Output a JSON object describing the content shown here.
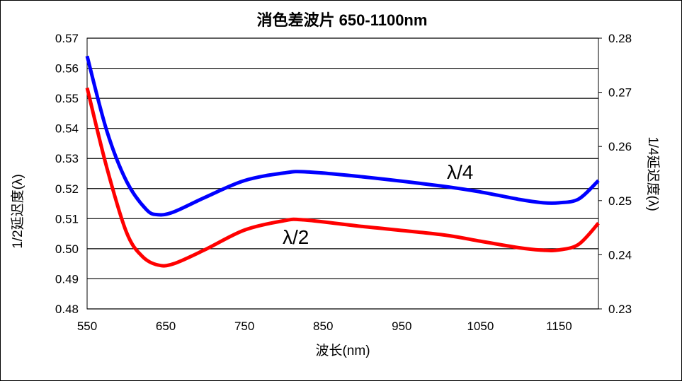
{
  "chart_data": {
    "type": "line",
    "title": "消色差波片 650-1100nm",
    "xlabel": "波长(nm)",
    "ylabel_left": "1/2延迟度(λ)",
    "ylabel_right": "1/4延迟度(λ)",
    "xlim": [
      550,
      1200
    ],
    "ylim_left": [
      0.48,
      0.57
    ],
    "ylim_right": [
      0.23,
      0.28
    ],
    "x_ticks": [
      "550",
      "650",
      "750",
      "850",
      "950",
      "1050",
      "1150"
    ],
    "y_left_ticks": [
      "0.48",
      "0.49",
      "0.50",
      "0.51",
      "0.52",
      "0.53",
      "0.54",
      "0.55",
      "0.56",
      "0.57"
    ],
    "y_right_ticks": [
      "0.23",
      "0.24",
      "0.25",
      "0.26",
      "0.27",
      "0.28"
    ],
    "grid": "horizontal",
    "series": [
      {
        "name": "λ/4",
        "axis": "right",
        "color": "#0000ff",
        "x": [
          550,
          575,
          600,
          625,
          640,
          660,
          700,
          750,
          800,
          830,
          900,
          1000,
          1050,
          1100,
          1130,
          1150,
          1175,
          1200
        ],
        "y": [
          0.2767,
          0.2629,
          0.2536,
          0.2484,
          0.2474,
          0.2479,
          0.2506,
          0.2537,
          0.2551,
          0.2553,
          0.2544,
          0.2527,
          0.2516,
          0.2502,
          0.2496,
          0.2496,
          0.2503,
          0.2537
        ]
      },
      {
        "name": "λ/2",
        "axis": "left",
        "color": "#ff0000",
        "x": [
          550,
          575,
          600,
          620,
          640,
          660,
          700,
          750,
          800,
          825,
          900,
          1000,
          1050,
          1100,
          1130,
          1150,
          1175,
          1200
        ],
        "y": [
          0.5535,
          0.527,
          0.5055,
          0.4975,
          0.4946,
          0.495,
          0.4997,
          0.5062,
          0.5093,
          0.5096,
          0.5074,
          0.5047,
          0.5025,
          0.5003,
          0.4995,
          0.4996,
          0.5015,
          0.5085
        ]
      }
    ],
    "annotations": [
      "λ/4",
      "λ/2"
    ]
  }
}
